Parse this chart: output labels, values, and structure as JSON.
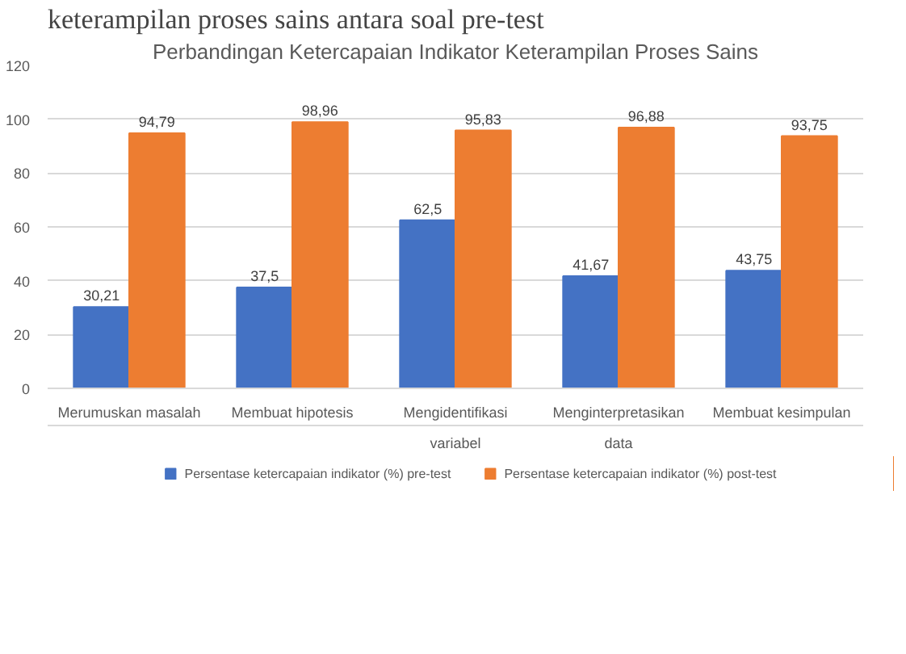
{
  "chart_data": {
    "type": "bar",
    "title": "Perbandingan Ketercapaian Indikator Keterampilan Proses Sains",
    "annotations": [
      "keterampilan proses sains antara soal pre-test"
    ],
    "categories": [
      "Merumuskan masalah",
      "Membuat hipotesis",
      "Mengidentifikasi\nvariabel",
      "Menginterpretasikan\ndata",
      "Membuat kesimpulan"
    ],
    "series": [
      {
        "name": "Persentase ketercapaian indikator (%) pre-test",
        "color": "#4472c4",
        "values": [
          30.21,
          37.5,
          62.5,
          41.67,
          43.75
        ],
        "value_labels": [
          "30,21",
          "37,5",
          "62,5",
          "41,67",
          "43,75"
        ]
      },
      {
        "name": "Persentase ketercapaian indikator (%) post-test",
        "color": "#ed7d31",
        "values": [
          94.79,
          98.96,
          95.83,
          96.88,
          93.75
        ],
        "value_labels": [
          "94,79",
          "98,96",
          "95,83",
          "96,88",
          "93,75"
        ]
      }
    ],
    "ylim": [
      0,
      120
    ],
    "yticks": [
      0,
      20,
      40,
      60,
      80,
      100,
      120
    ],
    "grid": "y",
    "legend": "bottom",
    "data_labels": true
  }
}
